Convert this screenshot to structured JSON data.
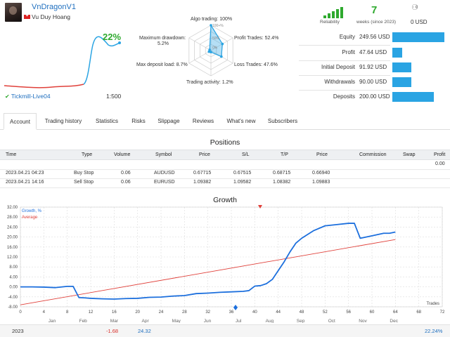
{
  "header": {
    "signal_name": "VnDragonV1",
    "author": "Vu Duy Hoang",
    "growth_percent": "22%",
    "account": "Tickmill-Live04",
    "leverage": "1:500"
  },
  "reliability": {
    "label": "Reliability",
    "bars_filled": 5,
    "bars_total": 5
  },
  "weeks": {
    "value": "7",
    "label": "weeks (since 2023)"
  },
  "subscribers": {
    "count": "0",
    "usd": "0 USD"
  },
  "radar": {
    "algo_trading": "Algo trading: 100%",
    "profit_trades": "Profit Trades: 52.4%",
    "loss_trades": "Loss Trades: 47.6%",
    "trading_activity": "Trading activity: 1.2%",
    "max_deposit_load": "Max deposit load: 8.7%",
    "max_drawdown_label": "Maximum drawdown:",
    "max_drawdown_value": "5.2%",
    "scale": [
      "100+%",
      "50%",
      "0%"
    ],
    "values": {
      "algo": 1.0,
      "profit": 0.524,
      "loss": 0.476,
      "activity": 0.012,
      "deposit_load": 0.087,
      "drawdown": 0.052
    }
  },
  "financials": [
    {
      "label": "Equity",
      "value": "249.56 USD",
      "fraction": 1.0
    },
    {
      "label": "Profit",
      "value": "47.64 USD",
      "fraction": 0.19
    },
    {
      "label": "Initial Deposit",
      "value": "91.92 USD",
      "fraction": 0.37
    },
    {
      "label": "Withdrawals",
      "value": "90.00 USD",
      "fraction": 0.36
    },
    {
      "label": "Deposits",
      "value": "200.00 USD",
      "fraction": 0.8
    }
  ],
  "colors": {
    "accent": "#1f6fbf",
    "green": "#2ea92e",
    "bar": "#2aa4e3",
    "growth_line": "#1c6fdd",
    "average_line": "#e0403a"
  },
  "tabs": [
    "Account",
    "Trading history",
    "Statistics",
    "Risks",
    "Slippage",
    "Reviews",
    "What's new",
    "Subscribers"
  ],
  "positions": {
    "title": "Positions",
    "columns": [
      "Time",
      "Type",
      "Volume",
      "Symbol",
      "Price",
      "S/L",
      "T/P",
      "Price",
      "Commission",
      "Swap",
      "Profit"
    ],
    "total_profit": "0.00",
    "rows": [
      {
        "time": "2023.04.21 04:23",
        "type": "Buy Stop",
        "volume": "0.06",
        "symbol": "AUDUSD",
        "price": "0.67715",
        "sl": "0.67515",
        "tp": "0.68715",
        "price2": "0.66940"
      },
      {
        "time": "2023.04.21 14:16",
        "type": "Sell Stop",
        "volume": "0.06",
        "symbol": "EURUSD",
        "price": "1.09382",
        "sl": "1.09582",
        "tp": "1.08382",
        "price2": "1.09883"
      }
    ]
  },
  "growth": {
    "title": "Growth",
    "legend": [
      "Growth, %",
      "Average"
    ],
    "x_axis_label": "Trades",
    "months": [
      "Jan",
      "Feb",
      "Mar",
      "Apr",
      "May",
      "Jun",
      "Jul",
      "Aug",
      "Sep",
      "Oct",
      "Nov",
      "Dec"
    ],
    "footer": {
      "year": "2023",
      "ytd_label": "YTD",
      "mar": "-1.68",
      "apr": "24.32",
      "ytd": "22.24%"
    }
  },
  "chart_data": {
    "type": "line",
    "title": "Growth",
    "xlabel": "Trades",
    "ylabel": "",
    "xlim": [
      0,
      72
    ],
    "ylim": [
      -8,
      32
    ],
    "x_ticks": [
      0,
      4,
      8,
      12,
      16,
      20,
      24,
      28,
      32,
      36,
      40,
      44,
      48,
      52,
      56,
      60,
      64,
      68,
      72
    ],
    "y_ticks": [
      -8,
      -4,
      0,
      4,
      8,
      12,
      16,
      20,
      24,
      28,
      32
    ],
    "grid": true,
    "legend_position": "top-left",
    "series": [
      {
        "name": "Growth, %",
        "x": [
          0,
          2,
          4,
          6,
          8,
          9,
          10,
          11,
          12,
          14,
          16,
          18,
          20,
          22,
          24,
          26,
          28,
          30,
          32,
          34,
          36,
          38,
          39,
          40,
          41,
          42,
          43,
          44,
          45,
          46,
          47,
          48,
          50,
          52,
          54,
          56,
          57,
          58,
          60,
          62,
          63,
          64
        ],
        "y": [
          0,
          0,
          -0.1,
          -0.3,
          0.2,
          0.2,
          -4.3,
          -4.4,
          -4.6,
          -4.8,
          -4.9,
          -4.7,
          -4.6,
          -4.2,
          -4.1,
          -3.7,
          -3.5,
          -2.7,
          -2.5,
          -2.2,
          -2.0,
          -1.8,
          -1.5,
          0.3,
          0.5,
          1.3,
          3.0,
          6.5,
          10.0,
          14.0,
          17.5,
          19.5,
          22.5,
          24.5,
          25.0,
          25.5,
          25.5,
          19.5,
          20.5,
          21.5,
          21.5,
          22.0
        ]
      },
      {
        "name": "Average",
        "x": [
          0,
          64
        ],
        "y": [
          -7.2,
          19.0
        ]
      }
    ]
  }
}
